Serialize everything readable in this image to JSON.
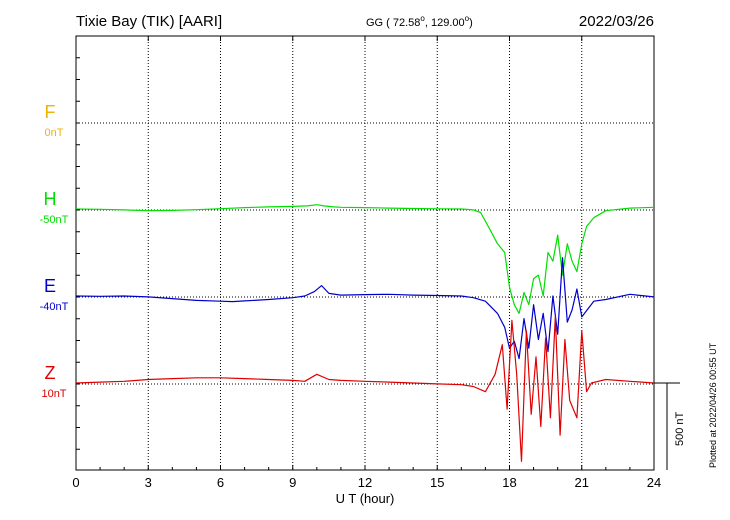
{
  "header": {
    "station": "Tixie Bay (TIK)  [AARI]",
    "coords_prefix": "GG ( 72.58",
    "coords_mid": ", 129.00",
    "coords_suffix": ")",
    "degree_mark": "o",
    "date": "2022/03/26"
  },
  "footer": {
    "plotted": "Plotted at 2022/04/26 00:55 UT"
  },
  "chart_data": {
    "type": "line",
    "xlabel": "U T (hour)",
    "xlim": [
      0,
      24
    ],
    "xticks": [
      0,
      3,
      6,
      9,
      12,
      15,
      18,
      21,
      24
    ],
    "scale_bar_label": "500 nT",
    "scale_bar_nT": 500,
    "grid": true,
    "colors": {
      "F": "#f0b400",
      "H": "#00e000",
      "E": "#0000cc",
      "Z": "#e00000"
    },
    "channels": [
      {
        "name": "F",
        "baseline_label": "0nT",
        "color": "#f0b400",
        "x": [],
        "y": []
      },
      {
        "name": "H",
        "baseline_label": "-50nT",
        "color": "#00e000",
        "x": [
          0,
          1,
          2,
          3,
          4,
          5,
          6,
          7,
          8,
          9,
          9.6,
          10,
          10.3,
          10.7,
          11,
          12,
          13,
          14,
          15,
          16,
          16.5,
          16.8,
          17.2,
          17.5,
          17.8,
          18,
          18.2,
          18.4,
          18.6,
          18.8,
          19,
          19.2,
          19.4,
          19.6,
          19.8,
          20,
          20.2,
          20.4,
          20.6,
          20.8,
          21,
          21.2,
          21.5,
          22,
          23,
          24
        ],
        "y": [
          0,
          -2,
          -5,
          -10,
          -8,
          -4,
          2,
          8,
          12,
          15,
          18,
          25,
          18,
          12,
          10,
          8,
          5,
          3,
          1,
          0,
          -5,
          -20,
          -120,
          -200,
          -250,
          -450,
          -550,
          -600,
          -480,
          -550,
          -400,
          -380,
          -500,
          -250,
          -300,
          -150,
          -380,
          -200,
          -300,
          -360,
          -200,
          -100,
          -50,
          -10,
          5,
          10
        ]
      },
      {
        "name": "E",
        "baseline_label": "-40nT",
        "color": "#0000cc",
        "x": [
          0,
          1,
          2,
          3,
          4,
          5,
          6,
          6.5,
          7,
          8,
          9,
          9.5,
          9.9,
          10.2,
          10.5,
          11,
          12,
          13,
          14,
          15,
          16,
          16.5,
          17,
          17.5,
          17.8,
          18,
          18.2,
          18.4,
          18.6,
          18.8,
          19,
          19.2,
          19.4,
          19.6,
          19.8,
          20,
          20.2,
          20.4,
          20.6,
          20.8,
          21,
          21.5,
          22,
          23,
          24
        ],
        "y": [
          0,
          -2,
          0,
          -5,
          -15,
          -25,
          -30,
          -32,
          -28,
          -20,
          -10,
          0,
          25,
          60,
          15,
          5,
          8,
          10,
          5,
          3,
          0,
          -10,
          -30,
          -100,
          -180,
          -300,
          -260,
          -360,
          -130,
          -300,
          -50,
          -250,
          -100,
          -320,
          0,
          -220,
          220,
          -150,
          -80,
          40,
          -120,
          -30,
          -20,
          10,
          -5
        ]
      },
      {
        "name": "Z",
        "baseline_label": "10nT",
        "color": "#e00000",
        "x": [
          0,
          1,
          2,
          3,
          4,
          5,
          6,
          7,
          8,
          9,
          9.5,
          10,
          10.5,
          11,
          12,
          13,
          14,
          15,
          16,
          16.5,
          17,
          17.4,
          17.7,
          17.9,
          18.1,
          18.3,
          18.5,
          18.7,
          18.9,
          19.1,
          19.3,
          19.5,
          19.7,
          19.9,
          20.1,
          20.3,
          20.5,
          20.8,
          21,
          21.2,
          21.4,
          22,
          23,
          24
        ],
        "y": [
          0,
          5,
          10,
          20,
          25,
          30,
          30,
          25,
          20,
          15,
          10,
          50,
          20,
          15,
          10,
          5,
          0,
          -5,
          -10,
          -20,
          -50,
          50,
          220,
          -150,
          360,
          50,
          -450,
          300,
          -180,
          150,
          -250,
          260,
          -200,
          380,
          -300,
          250,
          -100,
          -200,
          300,
          -50,
          0,
          20,
          10,
          0
        ]
      }
    ]
  }
}
